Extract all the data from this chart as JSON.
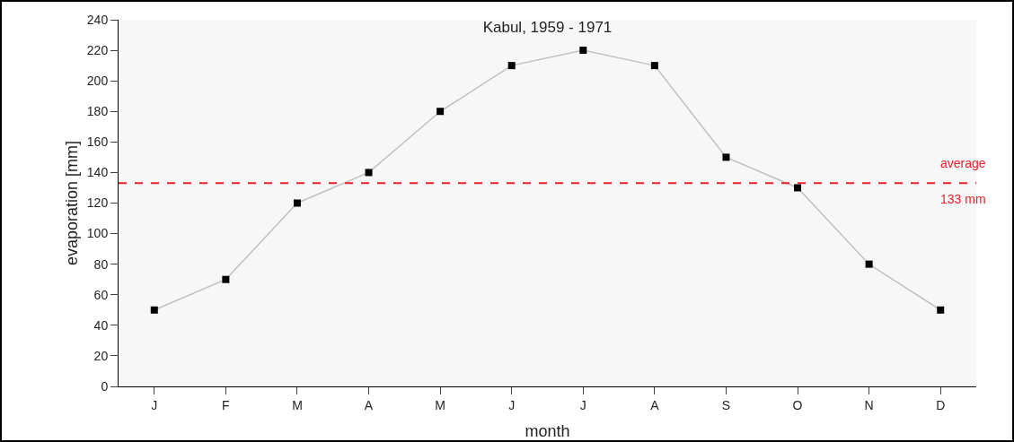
{
  "chart_data": {
    "type": "line",
    "title": "Kabul, 1959 - 1971",
    "xlabel": "month",
    "ylabel": "evaporation [mm]",
    "categories": [
      "J",
      "F",
      "M",
      "A",
      "M",
      "J",
      "J",
      "A",
      "S",
      "O",
      "N",
      "D"
    ],
    "series": [
      {
        "color": "#c0c0c0",
        "values": [
          50,
          70,
          120,
          140,
          180,
          210,
          220,
          210,
          150,
          130,
          80,
          50
        ]
      }
    ],
    "ylim": [
      0,
      240
    ],
    "yticks": [
      0,
      20,
      40,
      60,
      80,
      100,
      120,
      140,
      160,
      180,
      200,
      220,
      240
    ],
    "ref_lines": [
      {
        "axis": "y",
        "value": 133,
        "label": "average\n133 mm",
        "color": "#e8202a",
        "line_style": "dashed"
      }
    ],
    "grid": false,
    "marker": "square",
    "line_style": "solid"
  }
}
